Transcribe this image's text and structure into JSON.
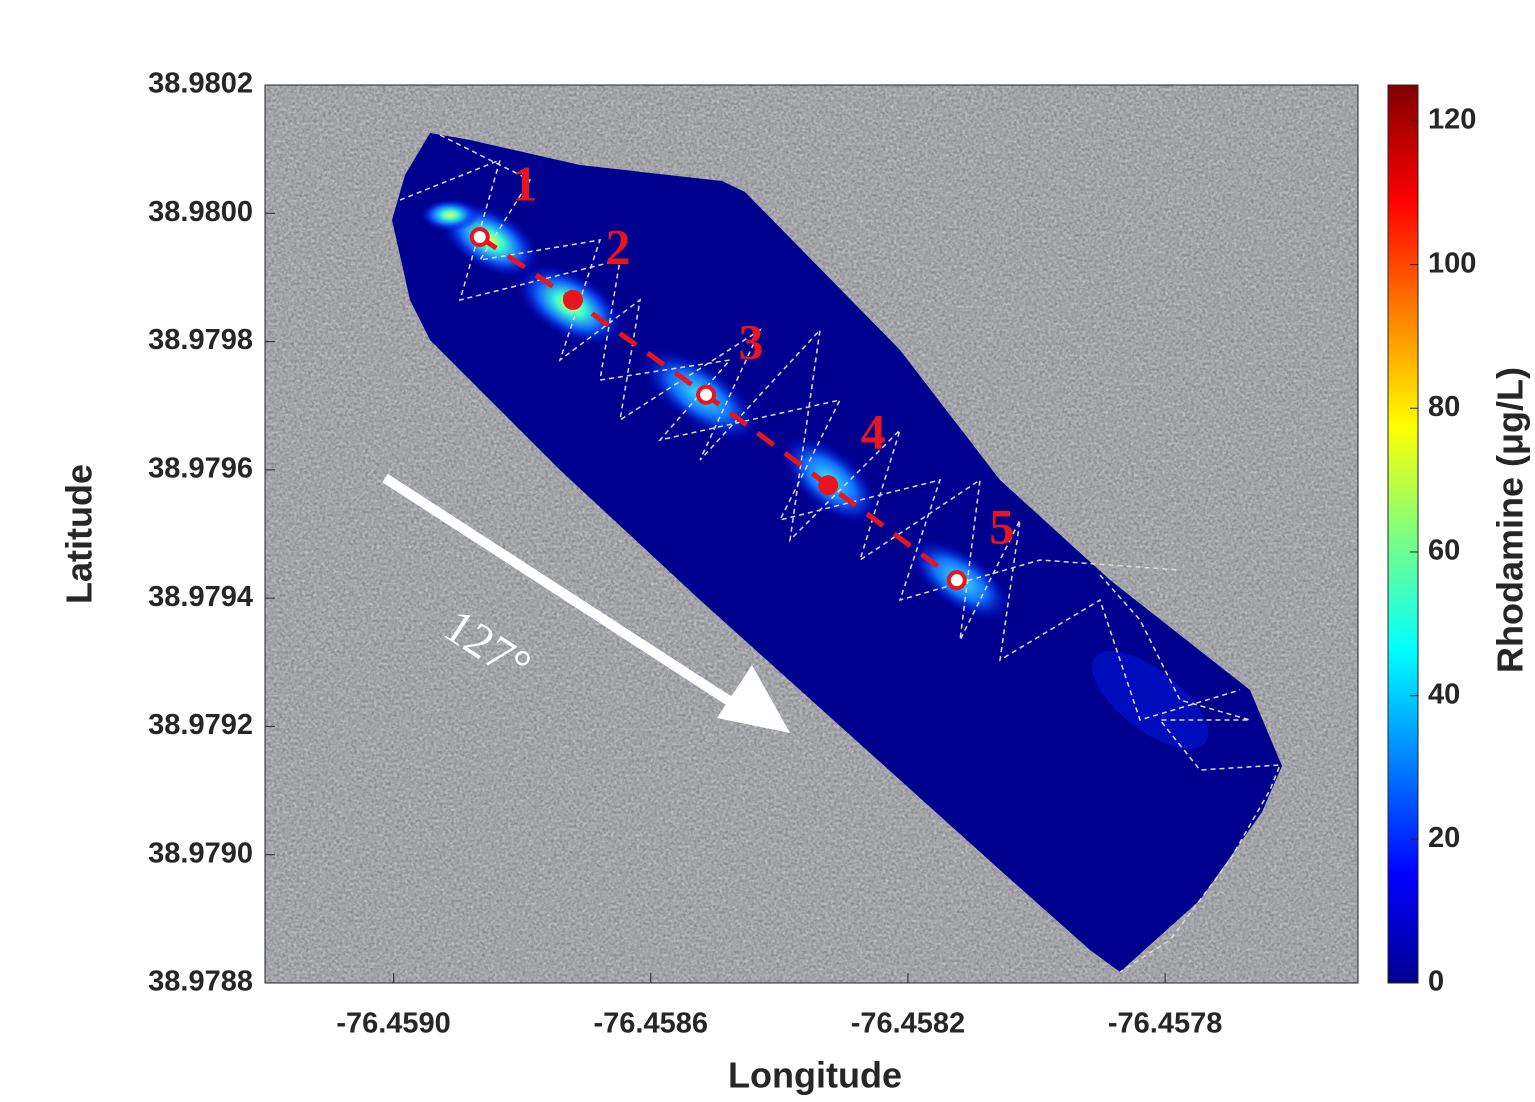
{
  "chart_data": {
    "type": "scatter",
    "xlabel": "Longitude",
    "ylabel": "Latitude",
    "x": [
      -76.458866,
      -76.458721,
      -76.458514,
      -76.458324,
      -76.458124
    ],
    "y": [
      38.979963,
      38.979865,
      38.979717,
      38.979576,
      38.979428
    ],
    "point_labels": [
      "1",
      "2",
      "3",
      "4",
      "5"
    ],
    "color": "#e8141e",
    "xlim": [
      -76.4592,
      -76.4575
    ],
    "xticks": [
      {
        "value": -76.459,
        "label": "-76.4590"
      },
      -76.4586,
      -76.4582,
      -76.4578
    ],
    "ylim": [
      38.9788,
      38.9802
    ],
    "yticks": [
      38.9788,
      {
        "value": 38.979,
        "label": "38.9790"
      },
      38.9792,
      38.9794,
      38.9796,
      38.9798,
      {
        "value": 38.98,
        "label": "38.9800"
      },
      38.9802
    ],
    "colorbar": {
      "label": "Rhodamine (μg/L)",
      "lim": [
        0,
        125
      ],
      "ticks": [
        0,
        20,
        40,
        60,
        80,
        100,
        120
      ]
    },
    "annotation": "127°"
  }
}
